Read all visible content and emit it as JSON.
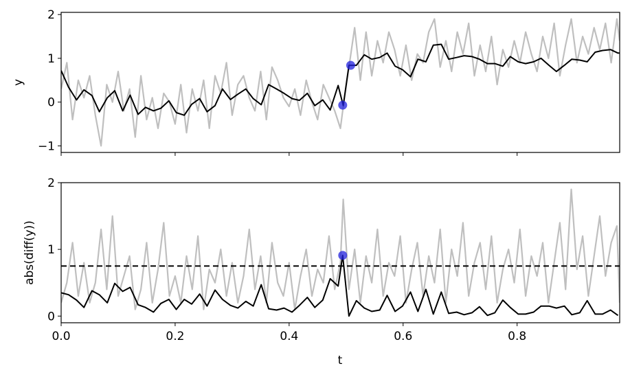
{
  "chart_data": [
    {
      "type": "line",
      "ylabel": "y",
      "xlabel": "",
      "xlim": [
        0,
        0.98
      ],
      "ylim": [
        -1.15,
        2.05
      ],
      "yticks": [
        -1,
        0,
        1,
        2
      ],
      "ytick_labels": [
        "−1",
        "0",
        "1",
        "2"
      ],
      "xticks": [
        0.0,
        0.2,
        0.4,
        0.6,
        0.8
      ],
      "xtick_labels_shown": false,
      "colors": {
        "raw": "#bfbfbf",
        "smooth": "#000000",
        "marker": "#2222dd"
      },
      "series": [
        {
          "role": "raw",
          "x": [
            0.0,
            0.01,
            0.02,
            0.03,
            0.04,
            0.05,
            0.06,
            0.07,
            0.08,
            0.09,
            0.1,
            0.11,
            0.12,
            0.13,
            0.14,
            0.15,
            0.16,
            0.17,
            0.18,
            0.19,
            0.2,
            0.21,
            0.22,
            0.23,
            0.24,
            0.25,
            0.26,
            0.27,
            0.28,
            0.29,
            0.3,
            0.31,
            0.32,
            0.33,
            0.34,
            0.35,
            0.36,
            0.37,
            0.38,
            0.39,
            0.4,
            0.41,
            0.42,
            0.43,
            0.44,
            0.45,
            0.46,
            0.47,
            0.48,
            0.49,
            0.495,
            0.505,
            0.515,
            0.525,
            0.535,
            0.545,
            0.555,
            0.565,
            0.575,
            0.585,
            0.595,
            0.605,
            0.615,
            0.625,
            0.635,
            0.645,
            0.655,
            0.665,
            0.675,
            0.685,
            0.695,
            0.705,
            0.715,
            0.725,
            0.735,
            0.745,
            0.755,
            0.765,
            0.775,
            0.785,
            0.795,
            0.805,
            0.815,
            0.825,
            0.835,
            0.845,
            0.855,
            0.865,
            0.875,
            0.885,
            0.895,
            0.905,
            0.915,
            0.925,
            0.935,
            0.945,
            0.955,
            0.965,
            0.975,
            0.98
          ],
          "y": [
            0.3,
            0.9,
            -0.4,
            0.5,
            0.1,
            0.6,
            -0.3,
            -1.0,
            0.4,
            0.0,
            0.7,
            -0.2,
            0.3,
            -0.8,
            0.6,
            -0.4,
            0.1,
            -0.6,
            0.2,
            0.0,
            -0.5,
            0.4,
            -0.7,
            0.3,
            -0.2,
            0.5,
            -0.6,
            0.6,
            0.2,
            0.9,
            -0.3,
            0.4,
            0.6,
            0.1,
            -0.2,
            0.7,
            -0.4,
            0.8,
            0.5,
            0.1,
            -0.1,
            0.3,
            -0.3,
            0.5,
            0.0,
            -0.4,
            0.4,
            0.1,
            -0.2,
            -0.6,
            -0.1,
            0.8,
            1.7,
            0.5,
            1.6,
            0.6,
            1.4,
            0.9,
            1.6,
            1.2,
            0.6,
            1.3,
            0.5,
            1.1,
            0.9,
            1.6,
            1.9,
            0.8,
            1.4,
            0.7,
            1.6,
            1.1,
            1.8,
            0.6,
            1.3,
            0.7,
            1.5,
            0.4,
            1.2,
            0.8,
            1.4,
            0.9,
            1.6,
            1.1,
            0.7,
            1.5,
            1.0,
            1.8,
            0.6,
            1.3,
            1.9,
            0.9,
            1.5,
            1.1,
            1.7,
            1.2,
            1.8,
            0.9,
            1.9,
            1.4
          ],
          "note": "approximate"
        },
        {
          "role": "smooth",
          "x": [
            0.0,
            0.013,
            0.027,
            0.04,
            0.054,
            0.067,
            0.081,
            0.094,
            0.108,
            0.121,
            0.135,
            0.148,
            0.162,
            0.175,
            0.189,
            0.202,
            0.216,
            0.229,
            0.243,
            0.256,
            0.27,
            0.283,
            0.297,
            0.31,
            0.324,
            0.337,
            0.351,
            0.364,
            0.378,
            0.391,
            0.405,
            0.418,
            0.432,
            0.445,
            0.459,
            0.472,
            0.486,
            0.495,
            0.505,
            0.518,
            0.532,
            0.545,
            0.559,
            0.572,
            0.586,
            0.599,
            0.613,
            0.626,
            0.64,
            0.653,
            0.667,
            0.68,
            0.694,
            0.707,
            0.721,
            0.734,
            0.748,
            0.761,
            0.775,
            0.788,
            0.802,
            0.815,
            0.829,
            0.842,
            0.856,
            0.869,
            0.883,
            0.896,
            0.91,
            0.923,
            0.937,
            0.95,
            0.964,
            0.977,
            0.98
          ],
          "y": [
            0.72,
            0.34,
            0.05,
            0.28,
            0.15,
            -0.22,
            0.1,
            0.26,
            -0.2,
            0.16,
            -0.28,
            -0.12,
            -0.2,
            -0.14,
            0.03,
            -0.24,
            -0.3,
            -0.05,
            0.08,
            -0.22,
            -0.08,
            0.3,
            0.06,
            0.18,
            0.3,
            0.08,
            -0.06,
            0.4,
            0.3,
            0.2,
            0.08,
            0.04,
            0.2,
            -0.08,
            0.05,
            -0.18,
            0.38,
            -0.08,
            0.84,
            0.84,
            1.08,
            0.98,
            1.02,
            1.12,
            0.82,
            0.74,
            0.58,
            0.98,
            0.92,
            1.3,
            1.32,
            0.98,
            1.02,
            1.06,
            1.04,
            0.98,
            0.88,
            0.88,
            0.82,
            1.04,
            0.92,
            0.88,
            0.92,
            1.0,
            0.84,
            0.7,
            0.84,
            0.98,
            0.96,
            0.92,
            1.14,
            1.18,
            1.2,
            1.12,
            1.12
          ]
        },
        {
          "role": "marker",
          "x": [
            0.494,
            0.508
          ],
          "y": [
            -0.07,
            0.84
          ]
        }
      ]
    },
    {
      "type": "line",
      "ylabel": "abs(diff(y))",
      "xlabel": "t",
      "xlim": [
        0,
        0.98
      ],
      "ylim": [
        -0.1,
        2.0
      ],
      "yticks": [
        0,
        1,
        2
      ],
      "ytick_labels": [
        "0",
        "1",
        "2"
      ],
      "xticks": [
        0.0,
        0.2,
        0.4,
        0.6,
        0.8
      ],
      "xtick_labels": [
        "0.0",
        "0.2",
        "0.4",
        "0.6",
        "0.8"
      ],
      "threshold": 0.75,
      "colors": {
        "raw": "#bfbfbf",
        "smooth": "#000000",
        "marker": "#2222dd",
        "threshold": "#000000"
      },
      "series": [
        {
          "role": "raw",
          "x": [
            0.0,
            0.01,
            0.02,
            0.03,
            0.04,
            0.05,
            0.06,
            0.07,
            0.08,
            0.09,
            0.1,
            0.11,
            0.12,
            0.13,
            0.14,
            0.15,
            0.16,
            0.17,
            0.18,
            0.19,
            0.2,
            0.21,
            0.22,
            0.23,
            0.24,
            0.25,
            0.26,
            0.27,
            0.28,
            0.29,
            0.3,
            0.31,
            0.32,
            0.33,
            0.34,
            0.35,
            0.36,
            0.37,
            0.38,
            0.39,
            0.4,
            0.41,
            0.42,
            0.43,
            0.44,
            0.45,
            0.46,
            0.47,
            0.48,
            0.49,
            0.495,
            0.505,
            0.515,
            0.525,
            0.535,
            0.545,
            0.555,
            0.565,
            0.575,
            0.585,
            0.595,
            0.605,
            0.615,
            0.625,
            0.635,
            0.645,
            0.655,
            0.665,
            0.675,
            0.685,
            0.695,
            0.705,
            0.715,
            0.725,
            0.735,
            0.745,
            0.755,
            0.765,
            0.775,
            0.785,
            0.795,
            0.805,
            0.815,
            0.825,
            0.835,
            0.845,
            0.855,
            0.865,
            0.875,
            0.885,
            0.895,
            0.905,
            0.915,
            0.925,
            0.935,
            0.945,
            0.955,
            0.965,
            0.975,
            0.98
          ],
          "y": [
            0.2,
            0.5,
            1.1,
            0.3,
            0.8,
            0.2,
            0.5,
            1.3,
            0.4,
            1.5,
            0.3,
            0.6,
            0.9,
            0.1,
            0.4,
            1.1,
            0.2,
            0.7,
            1.4,
            0.3,
            0.6,
            0.2,
            0.9,
            0.4,
            1.2,
            0.1,
            0.7,
            0.5,
            1.0,
            0.3,
            0.8,
            0.2,
            0.6,
            1.3,
            0.4,
            0.9,
            0.2,
            1.1,
            0.5,
            0.3,
            0.8,
            0.1,
            0.6,
            1.0,
            0.3,
            0.7,
            0.5,
            1.2,
            0.4,
            0.8,
            1.75,
            0.4,
            1.0,
            0.2,
            0.9,
            0.5,
            1.3,
            0.3,
            0.8,
            0.6,
            1.2,
            0.2,
            0.7,
            1.1,
            0.3,
            0.9,
            0.5,
            1.3,
            0.2,
            1.0,
            0.6,
            1.4,
            0.3,
            0.8,
            1.1,
            0.4,
            1.2,
            0.2,
            0.7,
            1.0,
            0.5,
            1.3,
            0.3,
            0.9,
            0.6,
            1.1,
            0.2,
            0.8,
            1.4,
            0.4,
            1.9,
            0.7,
            1.2,
            0.3,
            0.9,
            1.5,
            0.6,
            1.1,
            1.35,
            0.2
          ]
        },
        {
          "role": "smooth",
          "x": [
            0.0,
            0.013,
            0.027,
            0.04,
            0.054,
            0.067,
            0.081,
            0.094,
            0.108,
            0.121,
            0.135,
            0.148,
            0.162,
            0.175,
            0.189,
            0.202,
            0.216,
            0.229,
            0.243,
            0.256,
            0.27,
            0.283,
            0.297,
            0.31,
            0.324,
            0.337,
            0.351,
            0.364,
            0.378,
            0.391,
            0.405,
            0.418,
            0.432,
            0.445,
            0.459,
            0.472,
            0.486,
            0.494,
            0.505,
            0.518,
            0.532,
            0.545,
            0.559,
            0.572,
            0.586,
            0.599,
            0.613,
            0.626,
            0.64,
            0.653,
            0.667,
            0.68,
            0.694,
            0.707,
            0.721,
            0.734,
            0.748,
            0.761,
            0.775,
            0.788,
            0.802,
            0.815,
            0.829,
            0.842,
            0.856,
            0.869,
            0.883,
            0.896,
            0.91,
            0.923,
            0.937,
            0.95,
            0.964,
            0.977
          ],
          "y": [
            0.35,
            0.32,
            0.24,
            0.13,
            0.38,
            0.32,
            0.2,
            0.49,
            0.37,
            0.43,
            0.17,
            0.13,
            0.06,
            0.19,
            0.25,
            0.1,
            0.25,
            0.18,
            0.33,
            0.15,
            0.39,
            0.25,
            0.16,
            0.12,
            0.22,
            0.15,
            0.47,
            0.11,
            0.09,
            0.12,
            0.06,
            0.16,
            0.28,
            0.13,
            0.24,
            0.56,
            0.45,
            0.91,
            0.0,
            0.23,
            0.12,
            0.07,
            0.09,
            0.31,
            0.07,
            0.15,
            0.36,
            0.07,
            0.4,
            0.03,
            0.36,
            0.04,
            0.06,
            0.02,
            0.05,
            0.14,
            0.01,
            0.05,
            0.24,
            0.13,
            0.03,
            0.03,
            0.06,
            0.15,
            0.15,
            0.12,
            0.15,
            0.02,
            0.05,
            0.23,
            0.03,
            0.03,
            0.09,
            0.01
          ]
        },
        {
          "role": "marker",
          "x": [
            0.494
          ],
          "y": [
            0.91
          ]
        }
      ]
    }
  ]
}
